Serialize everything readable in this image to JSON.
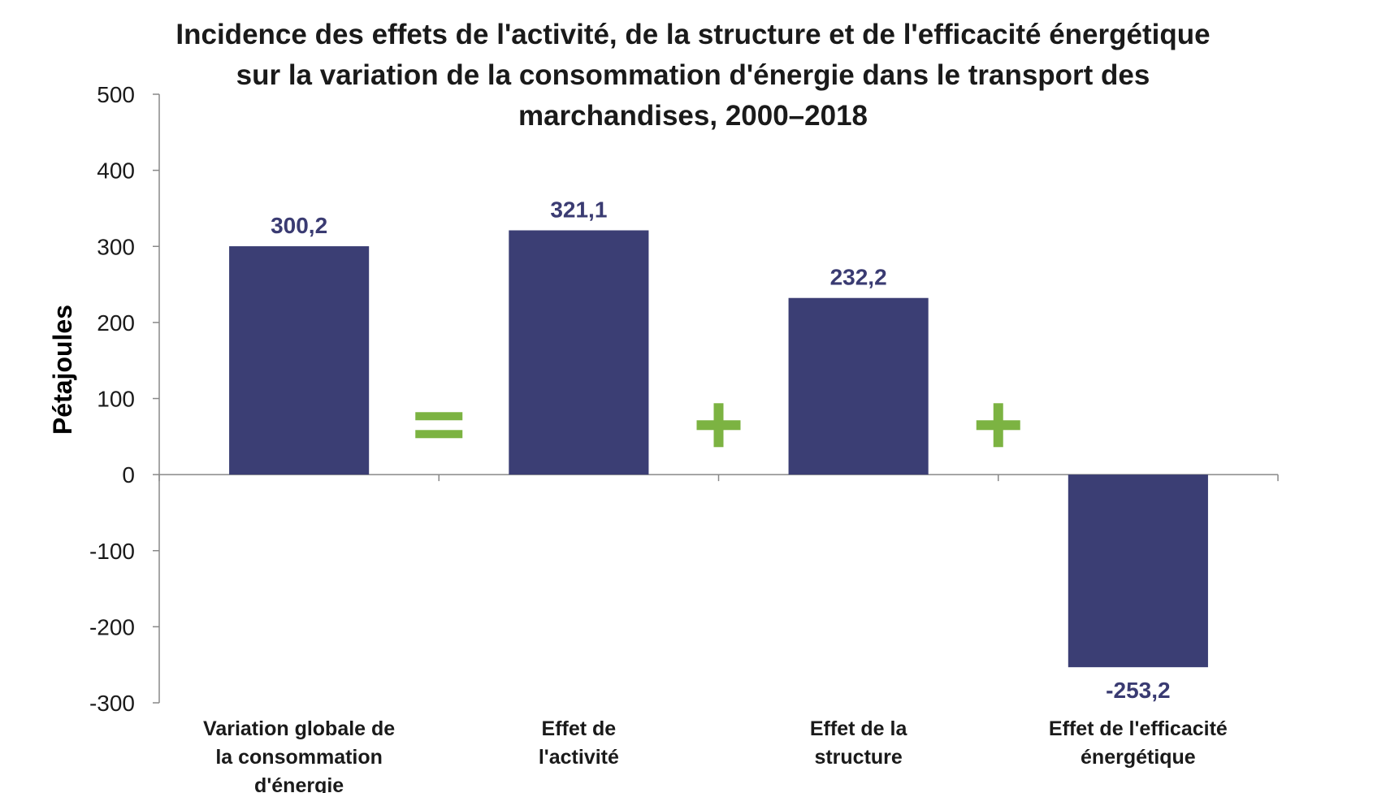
{
  "chart_data": {
    "type": "bar",
    "title": [
      "Incidence des effets de l'activité, de la structure et de l'efficacité énergétique",
      "sur la variation de la consommation d'énergie dans le transport des",
      "marchandises, 2000–2018"
    ],
    "ylabel": "Pétajoules",
    "xlabel": "",
    "ylim": [
      -300,
      500
    ],
    "yticks": [
      -300,
      -200,
      -100,
      0,
      100,
      200,
      300,
      400,
      500
    ],
    "yticklabels": [
      "-300",
      "-200",
      "-100",
      "0",
      "100",
      "200",
      "300",
      "400",
      "500"
    ],
    "categories": [
      [
        "Variation globale de",
        "la consommation",
        "d'énergie"
      ],
      [
        "Effet de",
        "l'activité"
      ],
      [
        "Effet de la",
        "structure"
      ],
      [
        "Effet de l'efficacité",
        "énergétique"
      ]
    ],
    "values": [
      300.2,
      321.1,
      232.2,
      -253.2
    ],
    "data_labels": [
      "300,2",
      "321,1",
      "232,2",
      "-253,2"
    ],
    "operators": [
      "=",
      "+",
      "+"
    ],
    "grid": false,
    "legend": "none",
    "colors": {
      "bar": "#3b3e74",
      "operator": "#7cb342",
      "axis": "#888888",
      "label": "#3a3b72"
    }
  }
}
